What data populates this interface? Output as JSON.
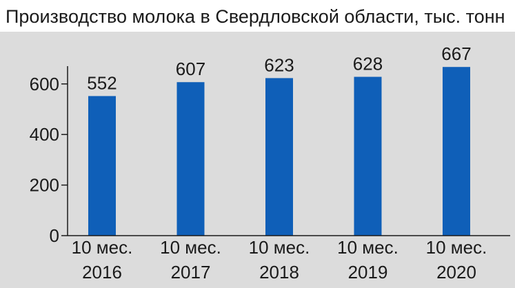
{
  "chart_data": {
    "type": "bar",
    "title": "Производство молока в Свердловской области, тыс. тонн",
    "categories": [
      [
        "10 мес.",
        "2016"
      ],
      [
        "10 мес.",
        "2017"
      ],
      [
        "10 мес.",
        "2018"
      ],
      [
        "10 мес.",
        "2019"
      ],
      [
        "10 мес.",
        "2020"
      ]
    ],
    "values": [
      552,
      607,
      623,
      628,
      667
    ],
    "ylim": [
      0,
      700
    ],
    "yticks": [
      0,
      200,
      400,
      600
    ],
    "grid": false,
    "colors": {
      "panel": "#dcdcdc",
      "bar": "#0f5fb8",
      "text": "#1a1a1a"
    }
  }
}
